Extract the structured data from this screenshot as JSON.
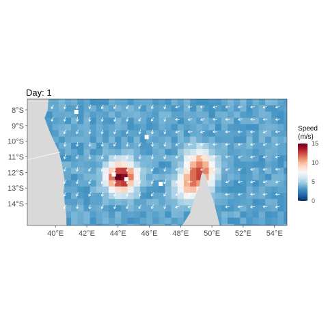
{
  "chart_data": {
    "type": "heatmap",
    "title": "Day: 1",
    "xlabel": "",
    "ylabel": "",
    "x_ticks": [
      "40°E",
      "42°E",
      "44°E",
      "46°E",
      "48°E",
      "50°E",
      "52°E",
      "54°E"
    ],
    "x_tick_values": [
      40,
      42,
      44,
      46,
      48,
      50,
      52,
      54
    ],
    "y_ticks": [
      "8°S",
      "9°S",
      "10°S",
      "11°S",
      "12°S",
      "13°S",
      "14°S"
    ],
    "y_tick_values": [
      -8,
      -9,
      -10,
      -11,
      -12,
      -13,
      -14
    ],
    "xlim": [
      38.2,
      54.8
    ],
    "ylim": [
      -15.4,
      -7.3
    ],
    "grid": false,
    "legend": {
      "title": "Speed\n(m/s)",
      "placement": "right",
      "min": 0,
      "max": 15,
      "ticks": [
        0,
        5,
        10,
        15
      ],
      "colors": [
        "#053061",
        "#2166ac",
        "#4393c3",
        "#92c5de",
        "#d1e5f0",
        "#f7f7f7",
        "#fddbc7",
        "#f4a582",
        "#d6604d",
        "#b2182b",
        "#67001f"
      ]
    },
    "land_color": "#d9d9d9",
    "typical_speed": 3.5,
    "arrow_color": "#ffffff",
    "hotspots": [
      {
        "lon": 49.3,
        "lat": -11.9,
        "speed": 10.5
      },
      {
        "lon": 48.6,
        "lat": -12.9,
        "speed": 9
      },
      {
        "lon": 44.2,
        "lat": -12.3,
        "speed": 15
      },
      {
        "lon": 49.1,
        "lat": -11.1,
        "speed": 6
      }
    ]
  }
}
